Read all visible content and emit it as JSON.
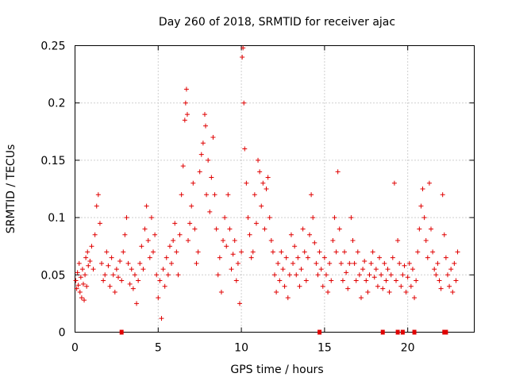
{
  "chart_data": {
    "type": "scatter",
    "title": "Day 260 of 2018, SRMTID for receiver ajac",
    "xlabel": "GPS time / hours",
    "ylabel": "SRMTID / TECUs",
    "xlim": [
      0,
      24
    ],
    "ylim": [
      0,
      0.25
    ],
    "x_ticks": [
      0,
      5,
      10,
      15,
      20
    ],
    "x_tick_labels": [
      "0",
      "5",
      "10",
      "15",
      "20"
    ],
    "y_ticks": [
      0,
      0.05,
      0.1,
      0.15,
      0.2,
      0.25
    ],
    "y_tick_labels": [
      "0",
      "0.05",
      "0.1",
      "0.15",
      "0.2",
      "0.25"
    ],
    "grid": true,
    "marker": "+",
    "marker_color": "#e00000",
    "series": [
      {
        "name": "SRMTID",
        "points": [
          [
            0.05,
            0.045
          ],
          [
            0.1,
            0.038
          ],
          [
            0.15,
            0.052
          ],
          [
            0.2,
            0.041
          ],
          [
            0.25,
            0.06
          ],
          [
            0.3,
            0.035
          ],
          [
            0.35,
            0.048
          ],
          [
            0.4,
            0.03
          ],
          [
            0.45,
            0.055
          ],
          [
            0.5,
            0.042
          ],
          [
            0.55,
            0.028
          ],
          [
            0.6,
            0.05
          ],
          [
            0.65,
            0.065
          ],
          [
            0.7,
            0.04
          ],
          [
            0.75,
            0.07
          ],
          [
            0.8,
            0.058
          ],
          [
            0.9,
            0.062
          ],
          [
            1.0,
            0.075
          ],
          [
            1.1,
            0.055
          ],
          [
            1.2,
            0.085
          ],
          [
            1.3,
            0.11
          ],
          [
            1.4,
            0.12
          ],
          [
            1.5,
            0.095
          ],
          [
            1.6,
            0.06
          ],
          [
            1.7,
            0.045
          ],
          [
            1.8,
            0.05
          ],
          [
            1.9,
            0.07
          ],
          [
            2.0,
            0.058
          ],
          [
            2.1,
            0.04
          ],
          [
            2.2,
            0.065
          ],
          [
            2.3,
            0.05
          ],
          [
            2.4,
            0.035
          ],
          [
            2.5,
            0.055
          ],
          [
            2.6,
            0.048
          ],
          [
            2.7,
            0.062
          ],
          [
            2.8,
            0.045
          ],
          [
            2.9,
            0.07
          ],
          [
            3.0,
            0.085
          ],
          [
            3.1,
            0.1
          ],
          [
            3.2,
            0.06
          ],
          [
            3.3,
            0.042
          ],
          [
            3.4,
            0.055
          ],
          [
            3.5,
            0.038
          ],
          [
            3.6,
            0.05
          ],
          [
            3.7,
            0.025
          ],
          [
            3.8,
            0.045
          ],
          [
            3.9,
            0.06
          ],
          [
            4.0,
            0.075
          ],
          [
            4.1,
            0.055
          ],
          [
            4.2,
            0.09
          ],
          [
            4.3,
            0.11
          ],
          [
            4.4,
            0.08
          ],
          [
            4.5,
            0.065
          ],
          [
            4.6,
            0.1
          ],
          [
            4.7,
            0.07
          ],
          [
            4.8,
            0.085
          ],
          [
            4.9,
            0.05
          ],
          [
            5.0,
            0.03
          ],
          [
            5.1,
            0.045
          ],
          [
            5.2,
            0.012
          ],
          [
            5.3,
            0.055
          ],
          [
            5.4,
            0.04
          ],
          [
            5.5,
            0.065
          ],
          [
            5.6,
            0.05
          ],
          [
            5.7,
            0.075
          ],
          [
            5.8,
            0.06
          ],
          [
            5.9,
            0.08
          ],
          [
            6.0,
            0.095
          ],
          [
            6.1,
            0.07
          ],
          [
            6.2,
            0.05
          ],
          [
            6.3,
            0.085
          ],
          [
            6.4,
            0.12
          ],
          [
            6.5,
            0.145
          ],
          [
            6.6,
            0.185
          ],
          [
            6.65,
            0.2
          ],
          [
            6.7,
            0.212
          ],
          [
            6.75,
            0.19
          ],
          [
            6.8,
            0.08
          ],
          [
            6.9,
            0.095
          ],
          [
            7.0,
            0.11
          ],
          [
            7.1,
            0.13
          ],
          [
            7.2,
            0.09
          ],
          [
            7.3,
            0.06
          ],
          [
            7.4,
            0.07
          ],
          [
            7.5,
            0.14
          ],
          [
            7.6,
            0.155
          ],
          [
            7.7,
            0.165
          ],
          [
            7.8,
            0.19
          ],
          [
            7.85,
            0.18
          ],
          [
            7.9,
            0.12
          ],
          [
            8.0,
            0.15
          ],
          [
            8.1,
            0.105
          ],
          [
            8.2,
            0.135
          ],
          [
            8.3,
            0.17
          ],
          [
            8.4,
            0.12
          ],
          [
            8.5,
            0.09
          ],
          [
            8.6,
            0.05
          ],
          [
            8.7,
            0.065
          ],
          [
            8.8,
            0.035
          ],
          [
            8.9,
            0.08
          ],
          [
            9.0,
            0.1
          ],
          [
            9.1,
            0.075
          ],
          [
            9.2,
            0.12
          ],
          [
            9.3,
            0.09
          ],
          [
            9.4,
            0.055
          ],
          [
            9.5,
            0.068
          ],
          [
            9.6,
            0.08
          ],
          [
            9.7,
            0.045
          ],
          [
            9.8,
            0.06
          ],
          [
            9.9,
            0.025
          ],
          [
            10.0,
            0.07
          ],
          [
            10.05,
            0.24
          ],
          [
            10.1,
            0.248
          ],
          [
            10.15,
            0.2
          ],
          [
            10.2,
            0.16
          ],
          [
            10.3,
            0.13
          ],
          [
            10.4,
            0.1
          ],
          [
            10.5,
            0.085
          ],
          [
            10.6,
            0.065
          ],
          [
            10.7,
            0.07
          ],
          [
            10.8,
            0.12
          ],
          [
            10.9,
            0.095
          ],
          [
            11.0,
            0.15
          ],
          [
            11.1,
            0.14
          ],
          [
            11.2,
            0.11
          ],
          [
            11.3,
            0.13
          ],
          [
            11.4,
            0.09
          ],
          [
            11.5,
            0.125
          ],
          [
            11.6,
            0.135
          ],
          [
            11.7,
            0.1
          ],
          [
            11.8,
            0.08
          ],
          [
            11.9,
            0.07
          ],
          [
            12.0,
            0.05
          ],
          [
            12.1,
            0.035
          ],
          [
            12.2,
            0.06
          ],
          [
            12.3,
            0.045
          ],
          [
            12.4,
            0.07
          ],
          [
            12.5,
            0.055
          ],
          [
            12.6,
            0.04
          ],
          [
            12.7,
            0.065
          ],
          [
            12.8,
            0.03
          ],
          [
            12.9,
            0.05
          ],
          [
            13.0,
            0.085
          ],
          [
            13.1,
            0.06
          ],
          [
            13.2,
            0.075
          ],
          [
            13.3,
            0.05
          ],
          [
            13.4,
            0.065
          ],
          [
            13.5,
            0.04
          ],
          [
            13.6,
            0.055
          ],
          [
            13.7,
            0.09
          ],
          [
            13.8,
            0.07
          ],
          [
            13.9,
            0.045
          ],
          [
            14.0,
            0.065
          ],
          [
            14.1,
            0.085
          ],
          [
            14.2,
            0.12
          ],
          [
            14.3,
            0.1
          ],
          [
            14.4,
            0.078
          ],
          [
            14.5,
            0.06
          ],
          [
            14.6,
            0.05
          ],
          [
            14.7,
            0.07
          ],
          [
            14.8,
            0.055
          ],
          [
            14.9,
            0.04
          ],
          [
            15.0,
            0.065
          ],
          [
            15.1,
            0.05
          ],
          [
            15.2,
            0.035
          ],
          [
            15.3,
            0.06
          ],
          [
            15.4,
            0.045
          ],
          [
            15.5,
            0.08
          ],
          [
            15.6,
            0.1
          ],
          [
            15.7,
            0.07
          ],
          [
            15.8,
            0.14
          ],
          [
            15.9,
            0.09
          ],
          [
            16.0,
            0.06
          ],
          [
            16.1,
            0.045
          ],
          [
            16.2,
            0.07
          ],
          [
            16.3,
            0.052
          ],
          [
            16.4,
            0.038
          ],
          [
            16.5,
            0.06
          ],
          [
            16.6,
            0.1
          ],
          [
            16.7,
            0.08
          ],
          [
            16.8,
            0.06
          ],
          [
            16.9,
            0.045
          ],
          [
            17.0,
            0.07
          ],
          [
            17.1,
            0.05
          ],
          [
            17.2,
            0.03
          ],
          [
            17.3,
            0.055
          ],
          [
            17.4,
            0.062
          ],
          [
            17.5,
            0.045
          ],
          [
            17.6,
            0.035
          ],
          [
            17.7,
            0.05
          ],
          [
            17.8,
            0.06
          ],
          [
            17.9,
            0.07
          ],
          [
            18.0,
            0.048
          ],
          [
            18.1,
            0.055
          ],
          [
            18.2,
            0.04
          ],
          [
            18.3,
            0.065
          ],
          [
            18.4,
            0.05
          ],
          [
            18.5,
            0.038
          ],
          [
            18.6,
            0.06
          ],
          [
            18.7,
            0.045
          ],
          [
            18.8,
            0.055
          ],
          [
            18.9,
            0.035
          ],
          [
            19.0,
            0.05
          ],
          [
            19.1,
            0.065
          ],
          [
            19.2,
            0.13
          ],
          [
            19.3,
            0.045
          ],
          [
            19.4,
            0.08
          ],
          [
            19.5,
            0.06
          ],
          [
            19.6,
            0.04
          ],
          [
            19.7,
            0.05
          ],
          [
            19.8,
            0.058
          ],
          [
            19.9,
            0.035
          ],
          [
            20.0,
            0.048
          ],
          [
            20.1,
            0.06
          ],
          [
            20.2,
            0.04
          ],
          [
            20.3,
            0.055
          ],
          [
            20.4,
            0.03
          ],
          [
            20.5,
            0.045
          ],
          [
            20.6,
            0.07
          ],
          [
            20.7,
            0.09
          ],
          [
            20.8,
            0.11
          ],
          [
            20.9,
            0.125
          ],
          [
            21.0,
            0.1
          ],
          [
            21.1,
            0.08
          ],
          [
            21.2,
            0.065
          ],
          [
            21.3,
            0.13
          ],
          [
            21.4,
            0.09
          ],
          [
            21.5,
            0.07
          ],
          [
            21.6,
            0.055
          ],
          [
            21.7,
            0.05
          ],
          [
            21.8,
            0.06
          ],
          [
            21.9,
            0.045
          ],
          [
            22.0,
            0.038
          ],
          [
            22.1,
            0.12
          ],
          [
            22.2,
            0.085
          ],
          [
            22.3,
            0.065
          ],
          [
            22.4,
            0.05
          ],
          [
            22.5,
            0.04
          ],
          [
            22.6,
            0.055
          ],
          [
            22.7,
            0.035
          ],
          [
            22.8,
            0.06
          ],
          [
            22.9,
            0.045
          ],
          [
            23.0,
            0.07
          ]
        ]
      }
    ],
    "gap_markers_x": [
      2.8,
      14.7,
      18.5,
      19.4,
      19.7,
      20.4,
      22.2,
      22.3
    ]
  }
}
